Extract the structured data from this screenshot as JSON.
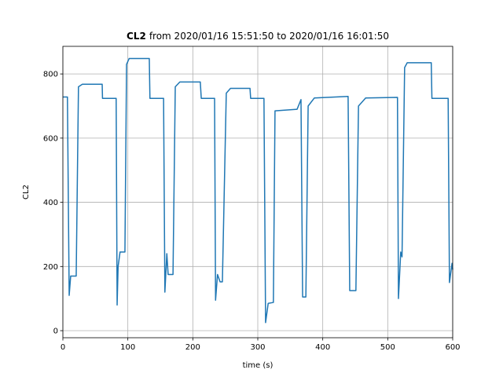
{
  "chart_data": {
    "type": "line",
    "title_bold": "CL2",
    "title": "from 2020/01/16 15:51:50 to 2020/01/16 16:01:50",
    "xlabel": "time (s)",
    "ylabel": "CL2",
    "xlim": [
      0,
      600
    ],
    "ylim": [
      -22,
      886
    ],
    "xticks": [
      0,
      100,
      200,
      300,
      400,
      500,
      600
    ],
    "yticks": [
      0,
      200,
      400,
      600,
      800
    ],
    "grid": true,
    "series": [
      {
        "name": "CL2",
        "color": "#1f77b4",
        "x": [
          0,
          7,
          9.7,
          12,
          20.5,
          24,
          30,
          60.5,
          61,
          82,
          83.5,
          85,
          88,
          95.5,
          98,
          102,
          133,
          134,
          155,
          157,
          160,
          162,
          169.5,
          173,
          180,
          211.5,
          213,
          233.5,
          235,
          238,
          242,
          245.5,
          251.5,
          258,
          288,
          289,
          309.5,
          312,
          316,
          324,
          326.5,
          360.5,
          366.5,
          369,
          374,
          377.5,
          387,
          439,
          441.5,
          451,
          455,
          466,
          515,
          516.5,
          520,
          522,
          526,
          530,
          567,
          568,
          593,
          595,
          599,
          600
        ],
        "values": [
          728,
          728,
          110,
          170,
          170,
          760,
          768,
          768,
          724,
          724,
          80,
          200,
          245,
          245,
          830,
          848,
          848,
          724,
          724,
          120,
          240,
          175,
          175,
          760,
          775,
          775,
          724,
          724,
          95,
          175,
          152,
          152,
          740,
          755,
          755,
          724,
          724,
          25,
          85,
          88,
          685,
          690,
          720,
          105,
          105,
          700,
          725,
          730,
          125,
          125,
          700,
          725,
          727,
          100,
          245,
          230,
          820,
          835,
          835,
          724,
          724,
          150,
          210,
          190
        ]
      }
    ]
  }
}
